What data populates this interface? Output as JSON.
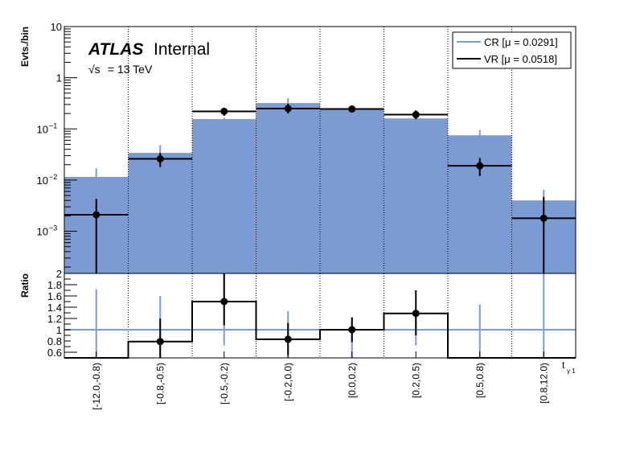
{
  "chart_data": [
    {
      "type": "bar",
      "panel": "main",
      "ylabel": "Evts./bin",
      "yscale": "log",
      "ylim": [
        0.00015,
        10
      ],
      "y_ticks": [
        {
          "value": 10,
          "label": "10"
        },
        {
          "value": 1,
          "label": "1"
        },
        {
          "value": 0.1,
          "label": "10",
          "exp": "−1"
        },
        {
          "value": 0.01,
          "label": "10",
          "exp": "−2"
        },
        {
          "value": 0.001,
          "label": "10",
          "exp": "−3"
        }
      ],
      "categories": [
        "[-12.0,-0.8)",
        "[-0.8,-0.5)",
        "[-0.5,-0.2)",
        "[-0.2,0.0)",
        "[0.0,0.2)",
        "[0.2,0.5)",
        "[0.5,0.8)",
        "[0.8,12.0)"
      ],
      "series": [
        {
          "name": "CR [μ = 0.0291]",
          "style": "filled-histogram",
          "color": "#7b9bd3",
          "values": [
            0.0115,
            0.034,
            0.155,
            0.32,
            0.25,
            0.16,
            0.075,
            0.004
          ],
          "err_low": [
            0.0095,
            0.024,
            0.145,
            0.29,
            0.24,
            0.15,
            0.057,
            0.0011
          ],
          "err_high": [
            0.017,
            0.048,
            0.165,
            0.4,
            0.26,
            0.17,
            0.095,
            0.0065
          ]
        },
        {
          "name": "VR [μ = 0.0518]",
          "style": "points",
          "color": "#000000",
          "values": [
            0.0021,
            0.026,
            0.22,
            0.25,
            0.245,
            0.19,
            0.019,
            0.0018
          ],
          "err_low": [
            0.00015,
            0.018,
            0.18,
            0.2,
            0.215,
            0.155,
            0.012,
            0.00015
          ],
          "err_high": [
            0.0043,
            0.034,
            0.26,
            0.31,
            0.27,
            0.23,
            0.027,
            0.0047
          ]
        }
      ],
      "legend_position": "top-right",
      "annotations": {
        "atlas": "ATLAS",
        "status": "Internal",
        "sqrt": "√s",
        "energy": " = 13 TeV"
      }
    },
    {
      "type": "bar",
      "panel": "ratio",
      "ylabel": "Ratio",
      "ylim": [
        0.5,
        2.0
      ],
      "y_ticks": [
        0.6,
        0.8,
        1,
        1.2,
        1.4,
        1.6,
        1.8,
        2
      ],
      "y_tick_labels": [
        "0.6",
        "0.8",
        "1",
        "1.2",
        "1.4",
        "1.6",
        "1.8",
        "2"
      ],
      "xlabel": "t",
      "xlabel_sub": "γ 1",
      "reference_line": 1,
      "values": [
        0.45,
        0.79,
        1.5,
        0.83,
        1.0,
        1.29,
        0.45,
        0.45
      ],
      "err_low": [
        0.45,
        0.45,
        1.08,
        0.55,
        0.78,
        0.9,
        0.45,
        0.45
      ],
      "err_high": [
        0.45,
        1.2,
        2.0,
        1.12,
        1.22,
        1.7,
        0.45,
        0.45
      ],
      "cr_err_low": [
        0.45,
        0.45,
        0.72,
        0.45,
        0.45,
        0.72,
        0.45,
        0.45
      ],
      "cr_err_high": [
        1.72,
        1.6,
        2.0,
        1.33,
        1.2,
        1.35,
        1.45,
        2.0
      ]
    }
  ]
}
